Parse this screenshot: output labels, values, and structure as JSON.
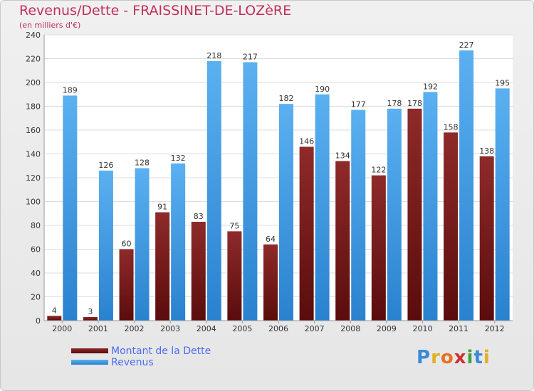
{
  "header": {
    "title": "Revenus/Dette - FRAISSINET-DE-LOZèRE",
    "subtitle": "(en milliers d'€)"
  },
  "legend": {
    "items": [
      {
        "label": "Montant de la Dette",
        "color": "#7a1a1a"
      },
      {
        "label": "Revenus",
        "color": "#4aa3e8"
      }
    ]
  },
  "logo": {
    "text": "Proxiti"
  },
  "chart_data": {
    "type": "bar",
    "title": "Revenus/Dette - FRAISSINET-DE-LOZèRE",
    "subtitle": "(en milliers d'€)",
    "categories": [
      "2000",
      "2001",
      "2002",
      "2003",
      "2004",
      "2005",
      "2006",
      "2007",
      "2008",
      "2009",
      "2010",
      "2011",
      "2012"
    ],
    "series": [
      {
        "name": "Montant de la Dette",
        "color": "#7a1a1a",
        "values": [
          4,
          3,
          60,
          91,
          83,
          75,
          64,
          146,
          134,
          122,
          178,
          158,
          138
        ]
      },
      {
        "name": "Revenus",
        "color": "#4aa3e8",
        "values": [
          189,
          126,
          128,
          132,
          218,
          217,
          182,
          190,
          177,
          178,
          192,
          227,
          195
        ]
      }
    ],
    "ylim": [
      0,
      240
    ],
    "yticks": [
      0,
      20,
      40,
      60,
      80,
      100,
      120,
      140,
      160,
      180,
      200,
      220,
      240
    ],
    "grid": true,
    "legend_position": "bottom-left"
  }
}
